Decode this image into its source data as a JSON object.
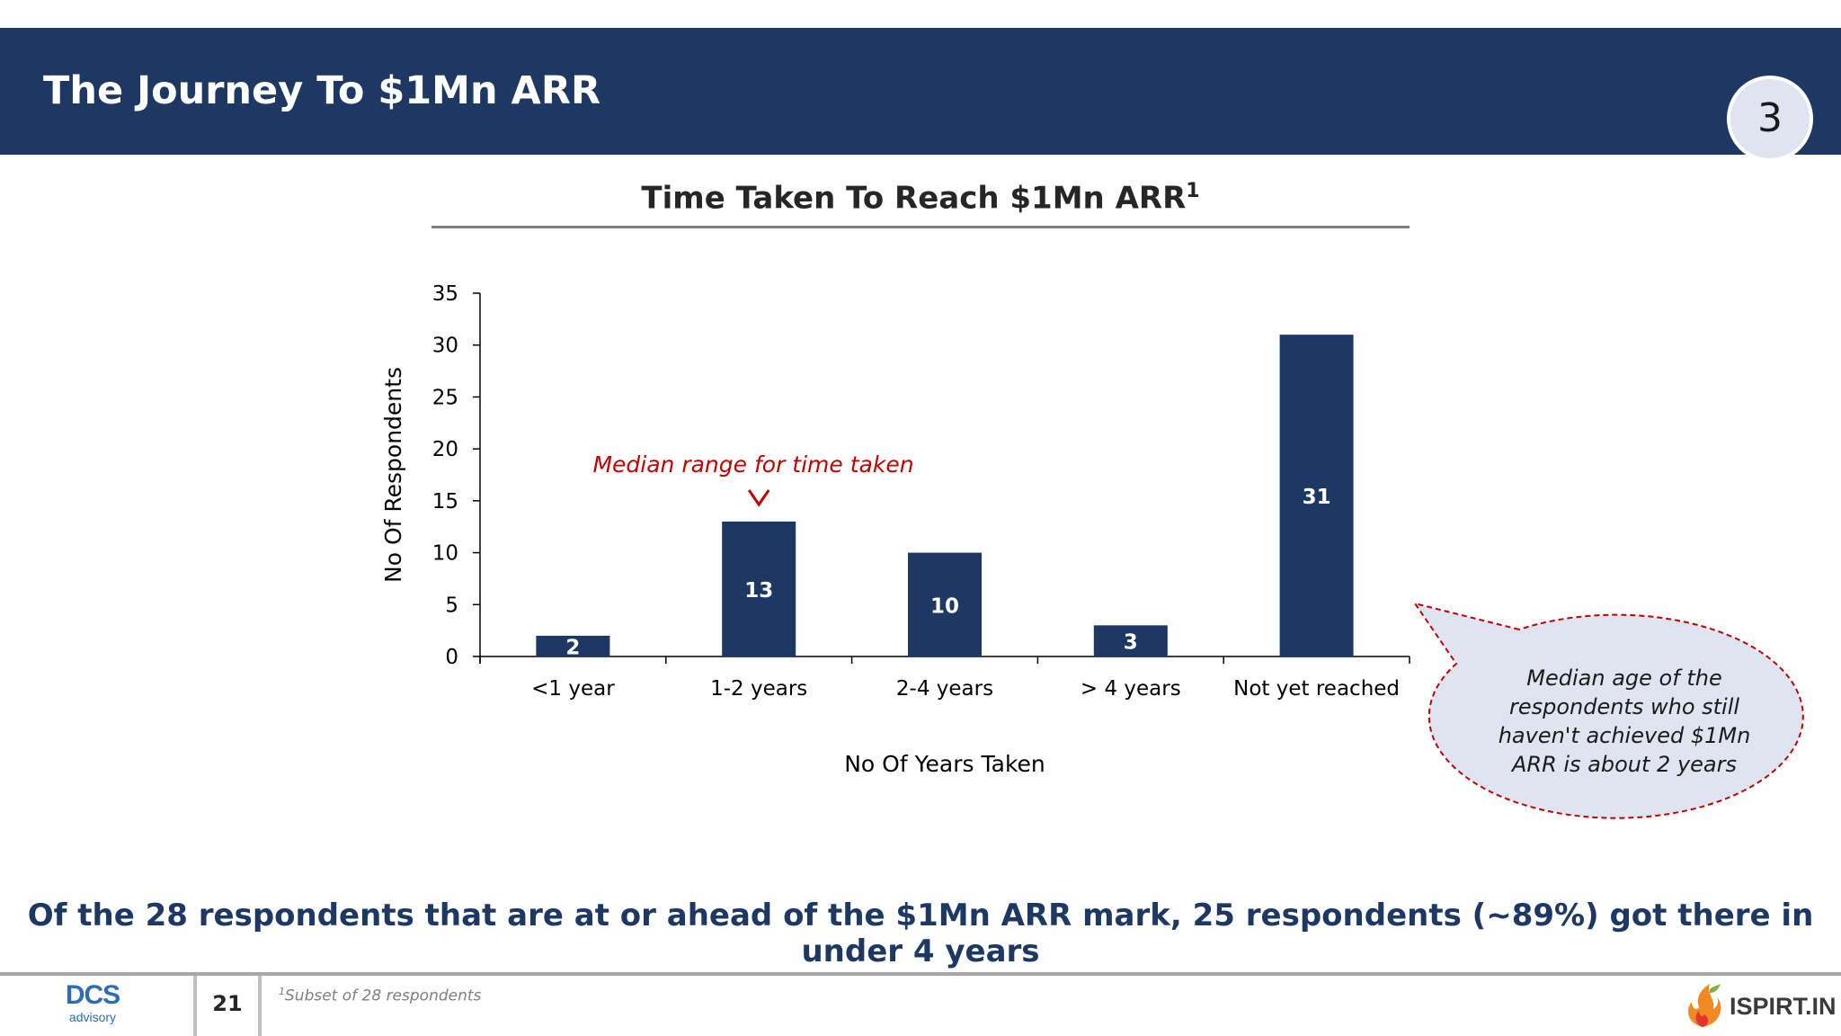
{
  "header": {
    "title": "The Journey To $1Mn ARR",
    "section_number": "3",
    "bar_color": "#1e3864"
  },
  "chart_data": {
    "type": "bar",
    "title": "Time Taken To Reach $1Mn ARR",
    "title_superscript": "1",
    "xlabel": "No Of Years Taken",
    "ylabel": "No Of Respondents",
    "categories": [
      "<1 year",
      "1-2 years",
      "2-4 years",
      "> 4 years",
      "Not yet reached"
    ],
    "values": [
      2,
      13,
      10,
      3,
      31
    ],
    "ylim": [
      0,
      35
    ],
    "yticks": [
      0,
      5,
      10,
      15,
      20,
      25,
      30,
      35
    ],
    "bar_color": "#1e3864",
    "grid": false,
    "annotation": {
      "text": "Median range for time taken",
      "target_category": "1-2 years",
      "color": "#c00000"
    },
    "callout": {
      "text_lines": [
        "Median age of the",
        "respondents who still",
        "haven't achieved $1Mn",
        "ARR is about 2 years"
      ],
      "fill": "#dfe4f1",
      "border": "#c00000"
    }
  },
  "takeaway": "Of the 28 respondents that are at or ahead of the $1Mn ARR mark, 25 respondents (~89%) got there in under 4 years",
  "footer": {
    "left_logo_text": "DCS",
    "left_logo_sub": "advisory",
    "page_number": "21",
    "footnote_marker": "1",
    "footnote": "Subset of 28 respondents",
    "right_logo_text": "ISPIRT.IN"
  }
}
